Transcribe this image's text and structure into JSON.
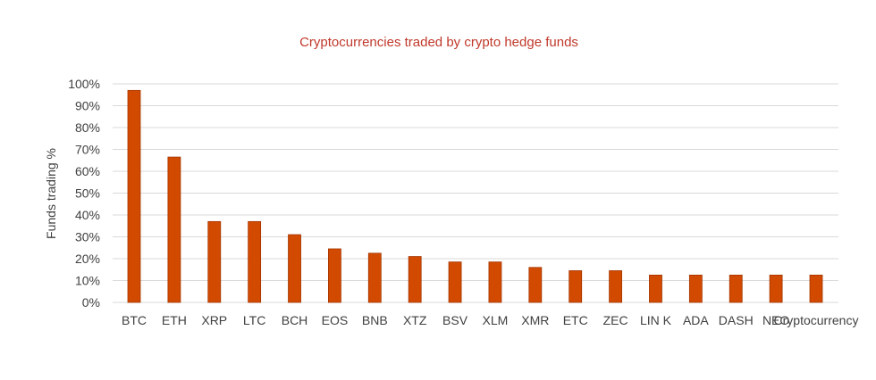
{
  "chart_data": {
    "type": "bar",
    "title": "Cryptocurrencies traded by crypto hedge funds",
    "ylabel": "Funds trading %",
    "xlabel": "",
    "ylim": [
      0,
      100
    ],
    "yticks": [
      "0%",
      "10%",
      "20%",
      "30%",
      "40%",
      "50%",
      "60%",
      "70%",
      "80%",
      "90%",
      "100%"
    ],
    "categories": [
      "BTC",
      "ETH",
      "XRP",
      "LTC",
      "BCH",
      "EOS",
      "BNB",
      "XTZ",
      "BSV",
      "XLM",
      "XMR",
      "ETC",
      "ZEC",
      "LIN K",
      "ADA",
      "DASH",
      "NEO",
      "Cryptocurrency"
    ],
    "values": [
      97,
      66.5,
      37,
      37,
      31,
      24.5,
      22.5,
      21,
      18.5,
      18.5,
      16,
      14.5,
      14.5,
      12.5,
      12.5,
      12.5,
      12.5,
      12.5
    ],
    "bar_color": "#d24a00",
    "title_color": "#c0392b",
    "grid": true
  }
}
